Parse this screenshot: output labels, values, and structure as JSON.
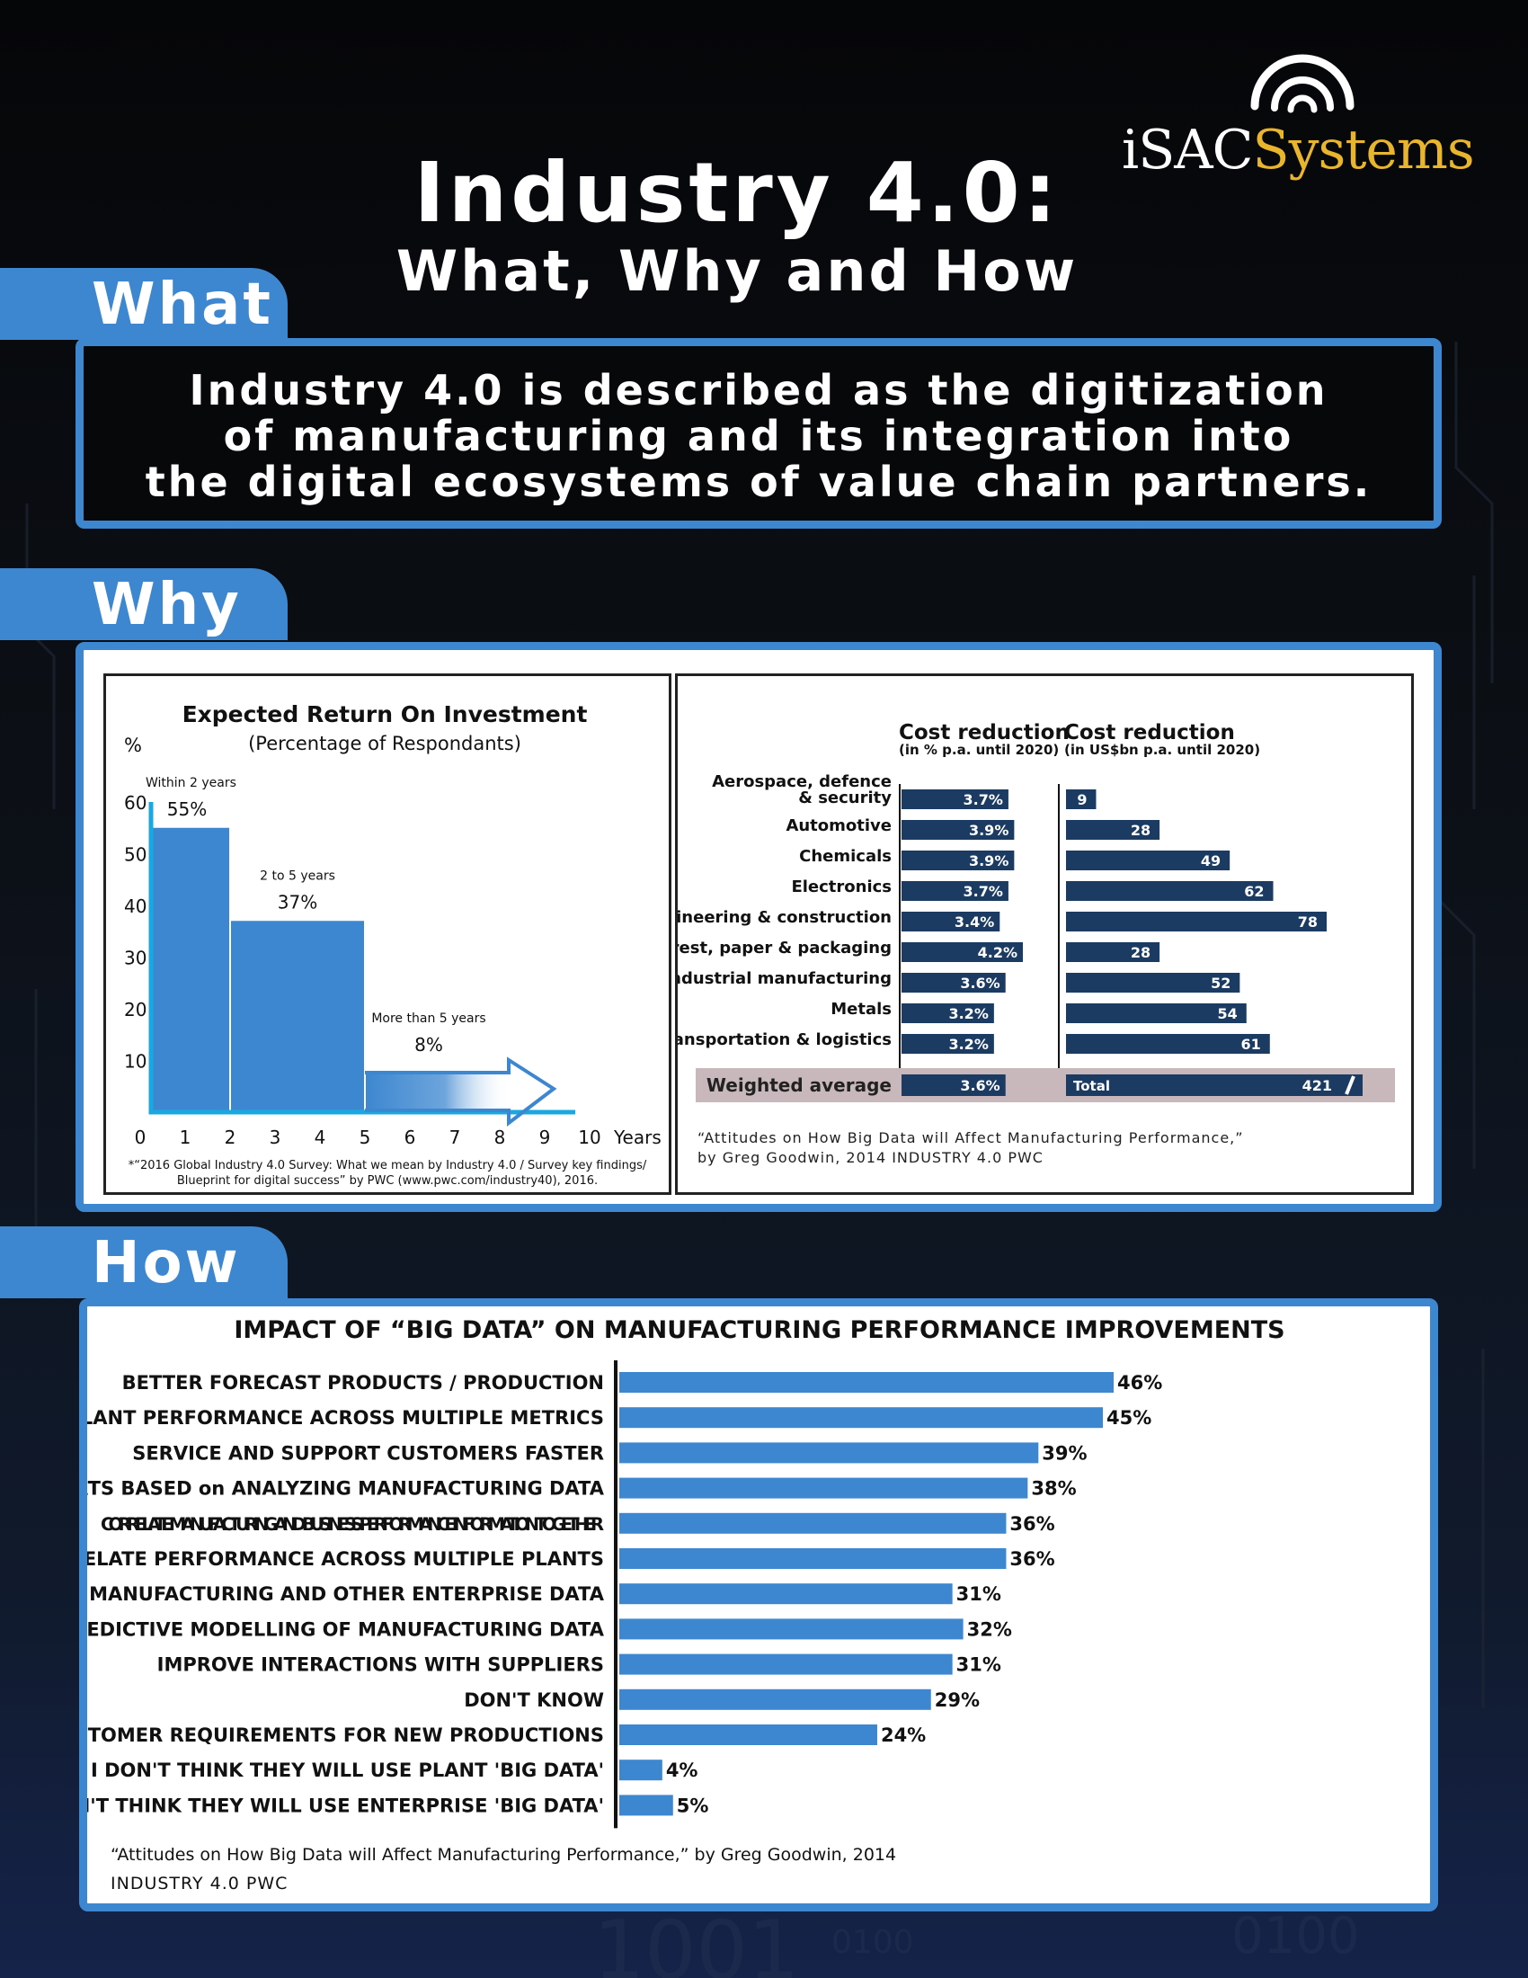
{
  "logo": {
    "part1": "iSAC",
    "part2": "Systems"
  },
  "title": {
    "line1": "Industry 4.0:",
    "line2": "What, Why and How"
  },
  "sections": {
    "what": "What",
    "why": "Why",
    "how": "How"
  },
  "what_text": [
    "Industry 4.0 is described as the digitization",
    "of manufacturing and its integration into",
    "the digital ecosystems of value chain partners."
  ],
  "colors": {
    "accent": "#3d87d0",
    "navy": "#1b3b63",
    "gold": "#e8b52c",
    "total_bg": "#c8b8bb"
  },
  "chart_data": [
    {
      "type": "bar",
      "title": "Expected Return On Investment",
      "subtitle": "(Percentage of Respondants)",
      "ylabel": "%",
      "xlabel": "Years",
      "ylim": [
        0,
        60
      ],
      "yticks": [
        10,
        20,
        30,
        40,
        50,
        60
      ],
      "xticks": [
        "0",
        "1",
        "2",
        "3",
        "4",
        "5",
        "6",
        "7",
        "8",
        "9",
        "10"
      ],
      "bars": [
        {
          "label": "Within 2 years",
          "value": 55,
          "value_label": "55%",
          "x_start": 0,
          "x_end": 2
        },
        {
          "label": "2 to 5 years",
          "value": 37,
          "value_label": "37%",
          "x_start": 2,
          "x_end": 5
        },
        {
          "label": "More than 5 years",
          "value": 8,
          "value_label": "8%",
          "x_start": 5,
          "x_end": 9
        }
      ],
      "footnote": [
        "*“2016 Global Industry 4.0 Survey: What we mean by Industry 4.0 / Survey key findings/",
        "Blueprint for digital success” by PWC (www.pwc.com/industry40), 2016."
      ]
    },
    {
      "type": "bar",
      "orientation": "horizontal",
      "categories": [
        "Aerospace, defence & security",
        "Automotive",
        "Chemicals",
        "Electronics",
        "Engineering & construction",
        "Forest, paper & packaging",
        "Industrial manufacturing",
        "Metals",
        "Transportation & logistics"
      ],
      "category_lines": [
        [
          "Aerospace, defence",
          "& security"
        ],
        [
          "Automotive"
        ],
        [
          "Chemicals"
        ],
        [
          "Electronics"
        ],
        [
          "Engineering & construction"
        ],
        [
          "Forest, paper & packaging"
        ],
        [
          "Industrial manufacturing"
        ],
        [
          "Metals"
        ],
        [
          "Transportation & logistics"
        ]
      ],
      "series": [
        {
          "name": "Cost reduction",
          "unit_note": "(in % p.a. until 2020)",
          "values": [
            3.7,
            3.9,
            3.9,
            3.7,
            3.4,
            4.2,
            3.6,
            3.2,
            3.2
          ],
          "labels": [
            "3.7%",
            "3.9%",
            "3.9%",
            "3.7%",
            "3.4%",
            "4.2%",
            "3.6%",
            "3.2%",
            "3.2%"
          ],
          "xlim": [
            0,
            4.5
          ]
        },
        {
          "name": "Cost reduction",
          "unit_note": "(in US$bn p.a. until 2020)",
          "values": [
            9,
            28,
            49,
            62,
            78,
            28,
            52,
            54,
            61
          ],
          "labels": [
            "9",
            "28",
            "49",
            "62",
            "78",
            "28",
            "52",
            "54",
            "61"
          ],
          "xlim": [
            0,
            90
          ]
        }
      ],
      "summary": {
        "label": "Weighted average",
        "pct_value": 3.6,
        "pct_label": "3.6%",
        "total_label": "Total",
        "total_value": 421,
        "total_value_label": "421"
      },
      "source": [
        "“Attitudes on How Big Data will Affect Manufacturing Performance,”",
        "by Greg Goodwin, 2014  INDUSTRY 4.0 PWC"
      ]
    },
    {
      "type": "bar",
      "orientation": "horizontal",
      "title": "IMPACT OF “BIG DATA” ON MANUFACTURING PERFORMANCE IMPROVEMENTS",
      "categories": [
        "BETTER FORECAST PRODUCTS / PRODUCTION",
        "UNDERSTAND PLANT PERFORMANCE ACROSS MULTIPLE METRICS",
        "SERVICE AND SUPPORT CUSTOMERS FASTER",
        "REAL-TIME ALERTS BASED on ANALYZING MANUFACTURING DATA",
        "CORRELATE MANUFACTURING AND BUSINESS PERFORMANCE INFORMATION TOGETHER",
        "CORRELATE PERFORMANCE ACROSS MULTIPLE PLANTS",
        "MINE COMBINATIONS OF MANUFACTURING AND OTHER ENTERPRISE DATA",
        "PERFORM PREDICTIVE MODELLING OF MANUFACTURING DATA",
        "IMPROVE INTERACTIONS WITH SUPPLIERS",
        "DON'T KNOW",
        "UNDERSTAND CUSTOMER REQUIREMENTS FOR NEW PRODUCTIONS",
        "I DON'T THINK THEY WILL USE PLANT 'BIG DATA'",
        "I DON'T THINK THEY WILL USE ENTERPRISE 'BIG DATA'"
      ],
      "values": [
        46,
        45,
        39,
        38,
        36,
        36,
        31,
        32,
        31,
        29,
        24,
        4,
        5
      ],
      "labels": [
        "46%",
        "45%",
        "39%",
        "38%",
        "36%",
        "36%",
        "31%",
        "32%",
        "31%",
        "29%",
        "24%",
        "4%",
        "5%"
      ],
      "xlim": [
        0,
        50
      ],
      "source": [
        "“Attitudes on How Big Data will Affect Manufacturing Performance,” by Greg Goodwin, 2014",
        "INDUSTRY 4.0 PWC"
      ]
    }
  ]
}
